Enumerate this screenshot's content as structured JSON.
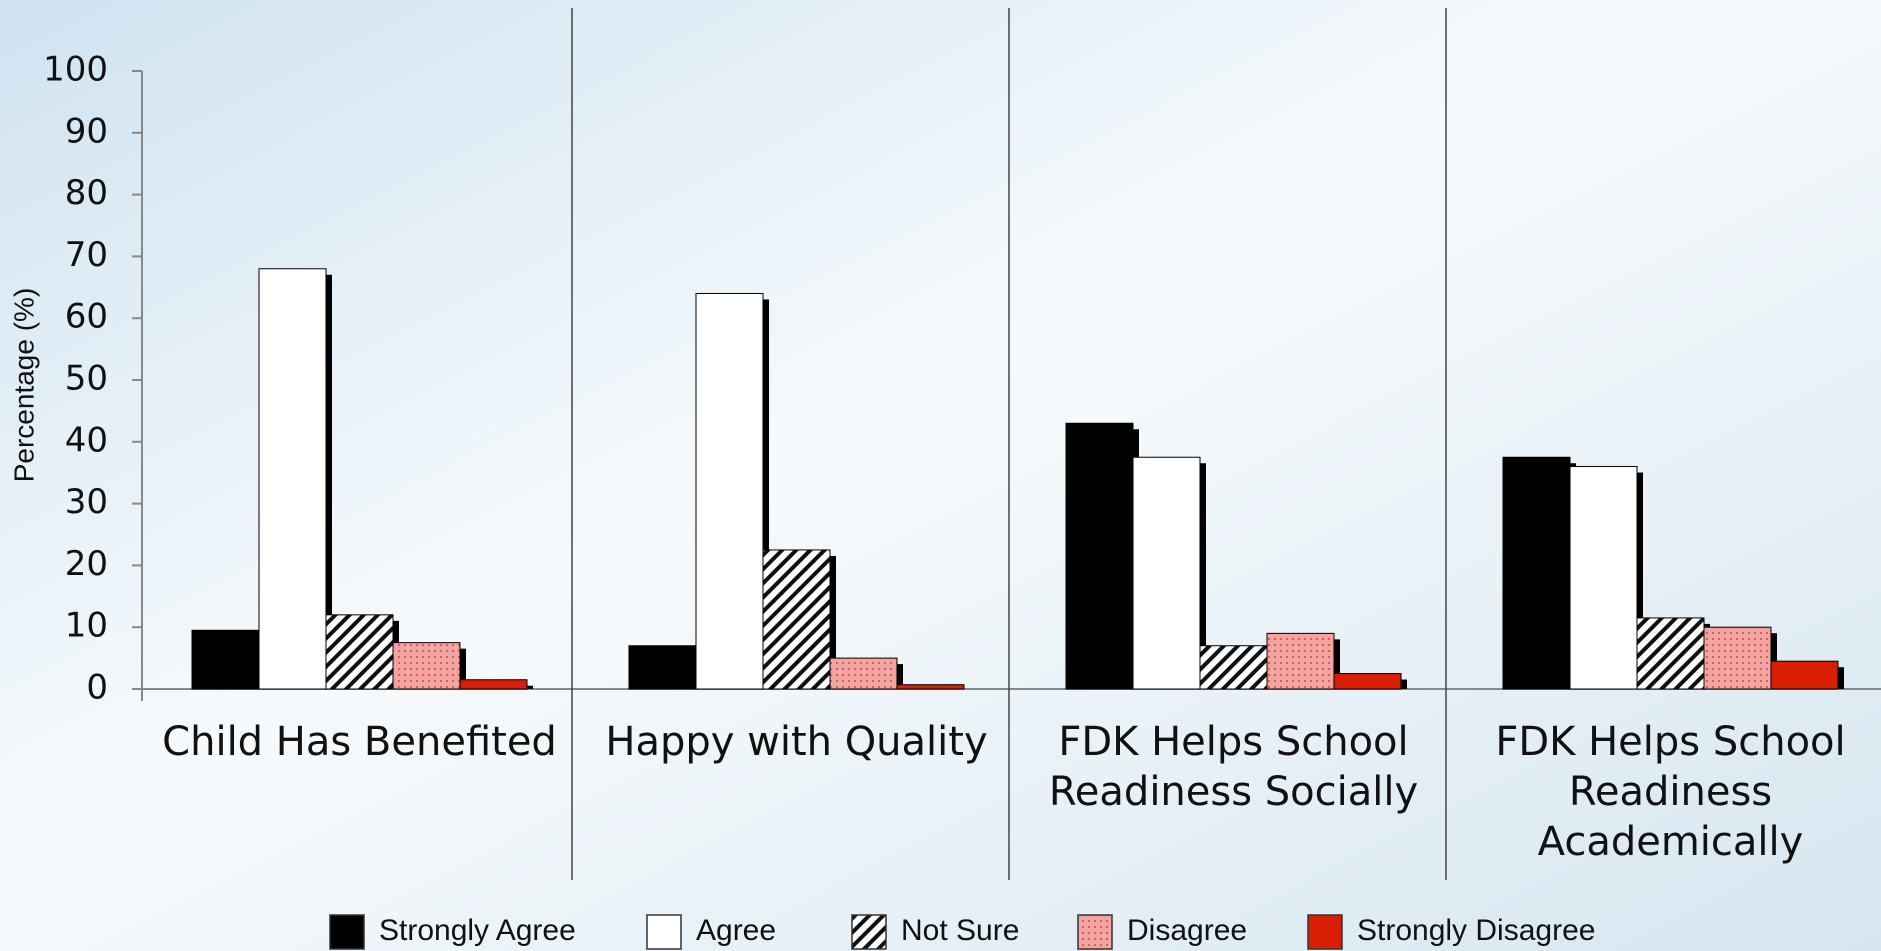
{
  "chart_data": {
    "type": "bar",
    "y_label": "Percentage (%)",
    "categories": [
      [
        "Child Has Benefited"
      ],
      [
        "Happy with Quality"
      ],
      [
        "FDK Helps School",
        "Readiness Socially"
      ],
      [
        "FDK Helps School",
        "Readiness",
        "Academically"
      ]
    ],
    "series": [
      {
        "name": "Strongly Agree",
        "color": "#000000",
        "values": [
          9.5,
          7,
          43,
          37.5
        ]
      },
      {
        "name": "Agree",
        "color": "#ffffff",
        "values": [
          68,
          64,
          37.5,
          36
        ]
      },
      {
        "name": "Not Sure",
        "color": "#ffffff",
        "pattern": "hatch",
        "values": [
          12,
          22.5,
          7,
          11.5
        ]
      },
      {
        "name": "Disagree",
        "color": "#f4a3a0",
        "pattern": "dots",
        "values": [
          7.5,
          5,
          9,
          10
        ]
      },
      {
        "name": "Strongly Disagree",
        "color": "#d81e05",
        "values": [
          1.5,
          0.7,
          2.5,
          4.5
        ]
      }
    ],
    "ylim": [
      0,
      100
    ],
    "yticks": [
      0,
      10,
      20,
      30,
      40,
      50,
      60,
      70,
      80,
      90,
      100
    ],
    "legend": "bottom"
  }
}
